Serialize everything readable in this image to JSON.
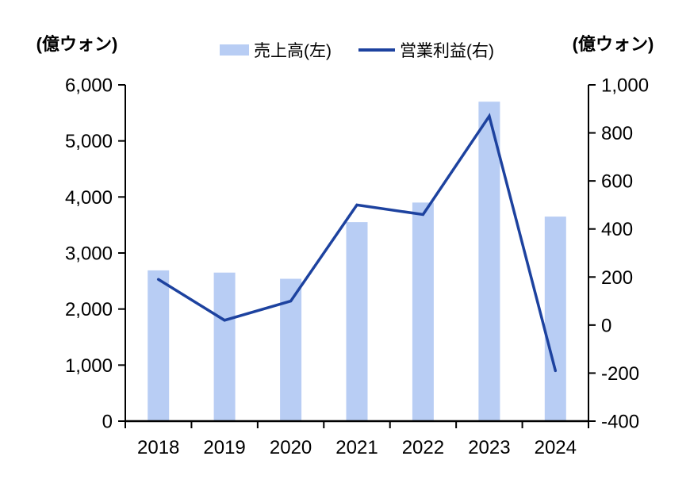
{
  "chart_data": {
    "type": "bar+line",
    "categories": [
      "2018",
      "2019",
      "2020",
      "2021",
      "2022",
      "2023",
      "2024"
    ],
    "series": [
      {
        "name": "売上高(左)",
        "type": "bar",
        "axis": "left",
        "color": "#b8cdf4",
        "values": [
          2690,
          2650,
          2540,
          3550,
          3900,
          5700,
          3650
        ]
      },
      {
        "name": "営業利益(右)",
        "type": "line",
        "axis": "right",
        "color": "#1d429f",
        "values": [
          190,
          20,
          100,
          500,
          460,
          870,
          -190
        ]
      }
    ],
    "axes": {
      "left": {
        "title": "(億ウォン)",
        "min": 0,
        "max": 6000,
        "step": 1000,
        "tick_labels": [
          "0",
          "1,000",
          "2,000",
          "3,000",
          "4,000",
          "5,000",
          "6,000"
        ]
      },
      "right": {
        "title": "(億ウォン)",
        "min": -400,
        "max": 1000,
        "step": 200,
        "tick_labels": [
          "-400",
          "-200",
          "0",
          "200",
          "400",
          "600",
          "800",
          "1,000"
        ]
      }
    },
    "legend_position": "top-center",
    "grid": false,
    "background": "#ffffff",
    "axis_color": "#000000"
  }
}
